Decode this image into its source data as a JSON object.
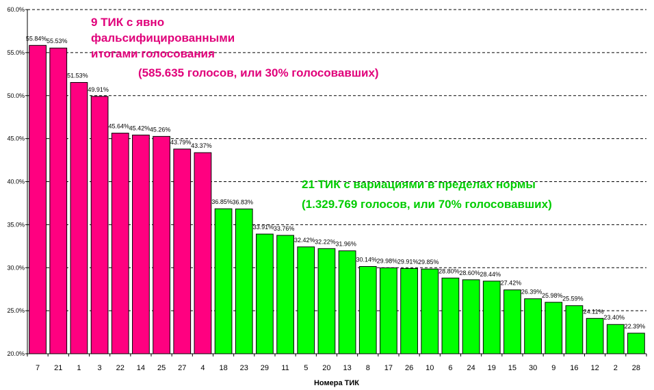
{
  "chart_data": {
    "type": "bar",
    "categories": [
      "7",
      "21",
      "1",
      "3",
      "22",
      "14",
      "25",
      "27",
      "4",
      "18",
      "23",
      "29",
      "11",
      "5",
      "20",
      "13",
      "8",
      "17",
      "26",
      "10",
      "6",
      "24",
      "19",
      "15",
      "30",
      "9",
      "16",
      "12",
      "2",
      "28"
    ],
    "values": [
      55.84,
      55.53,
      51.53,
      49.91,
      45.64,
      45.42,
      45.26,
      43.79,
      43.37,
      36.85,
      36.83,
      33.91,
      33.76,
      32.42,
      32.22,
      31.96,
      30.14,
      29.98,
      29.91,
      29.85,
      28.8,
      28.6,
      28.44,
      27.42,
      26.39,
      25.98,
      25.59,
      24.11,
      23.4,
      22.39
    ],
    "value_labels": [
      "55.84%",
      "55.53%",
      "51.53%",
      "49.91%",
      "45.64%",
      "45.42%",
      "45.26%",
      "43.79%",
      "43.37%",
      "36.85%",
      "36.83%",
      "33.91%",
      "33.76%",
      "32.42%",
      "32.22%",
      "31.96%",
      "30.14%",
      "29.98%",
      "29.91%",
      "29.85%",
      "28.80%",
      "28.60%",
      "28.44%",
      "27.42%",
      "26.39%",
      "25.98%",
      "25.59%",
      "24.11%",
      "23.40%",
      "22.39%"
    ],
    "bar_colors": [
      "#ff0080",
      "#ff0080",
      "#ff0080",
      "#ff0080",
      "#ff0080",
      "#ff0080",
      "#ff0080",
      "#ff0080",
      "#ff0080",
      "#00ff00",
      "#00ff00",
      "#00ff00",
      "#00ff00",
      "#00ff00",
      "#00ff00",
      "#00ff00",
      "#00ff00",
      "#00ff00",
      "#00ff00",
      "#00ff00",
      "#00ff00",
      "#00ff00",
      "#00ff00",
      "#00ff00",
      "#00ff00",
      "#00ff00",
      "#00ff00",
      "#00ff00",
      "#00ff00",
      "#00ff00"
    ],
    "xlabel": "Номера ТИК",
    "ylabel": "",
    "ylim": [
      20,
      60
    ],
    "yticks": [
      20,
      25,
      30,
      35,
      40,
      45,
      50,
      55,
      60
    ],
    "ytick_labels": [
      "20.0%",
      "25.0%",
      "30.0%",
      "35.0%",
      "40.0%",
      "45.0%",
      "50.0%",
      "55.0%",
      "60.0%"
    ],
    "grid": true
  },
  "annotations": {
    "falsified": {
      "lines": [
        "9 ТИК с явно",
        "фальсифицированными",
        "итогами голосования"
      ],
      "detail": "(585.635 голосов, или 30% голосовавших)",
      "color": "#e0007a"
    },
    "normal": {
      "line1": "21 ТИК с вариациями в пределах нормы",
      "line2": "(1.329.769 голосов, или 70% голосовавших)",
      "color": "#00cc00"
    }
  }
}
